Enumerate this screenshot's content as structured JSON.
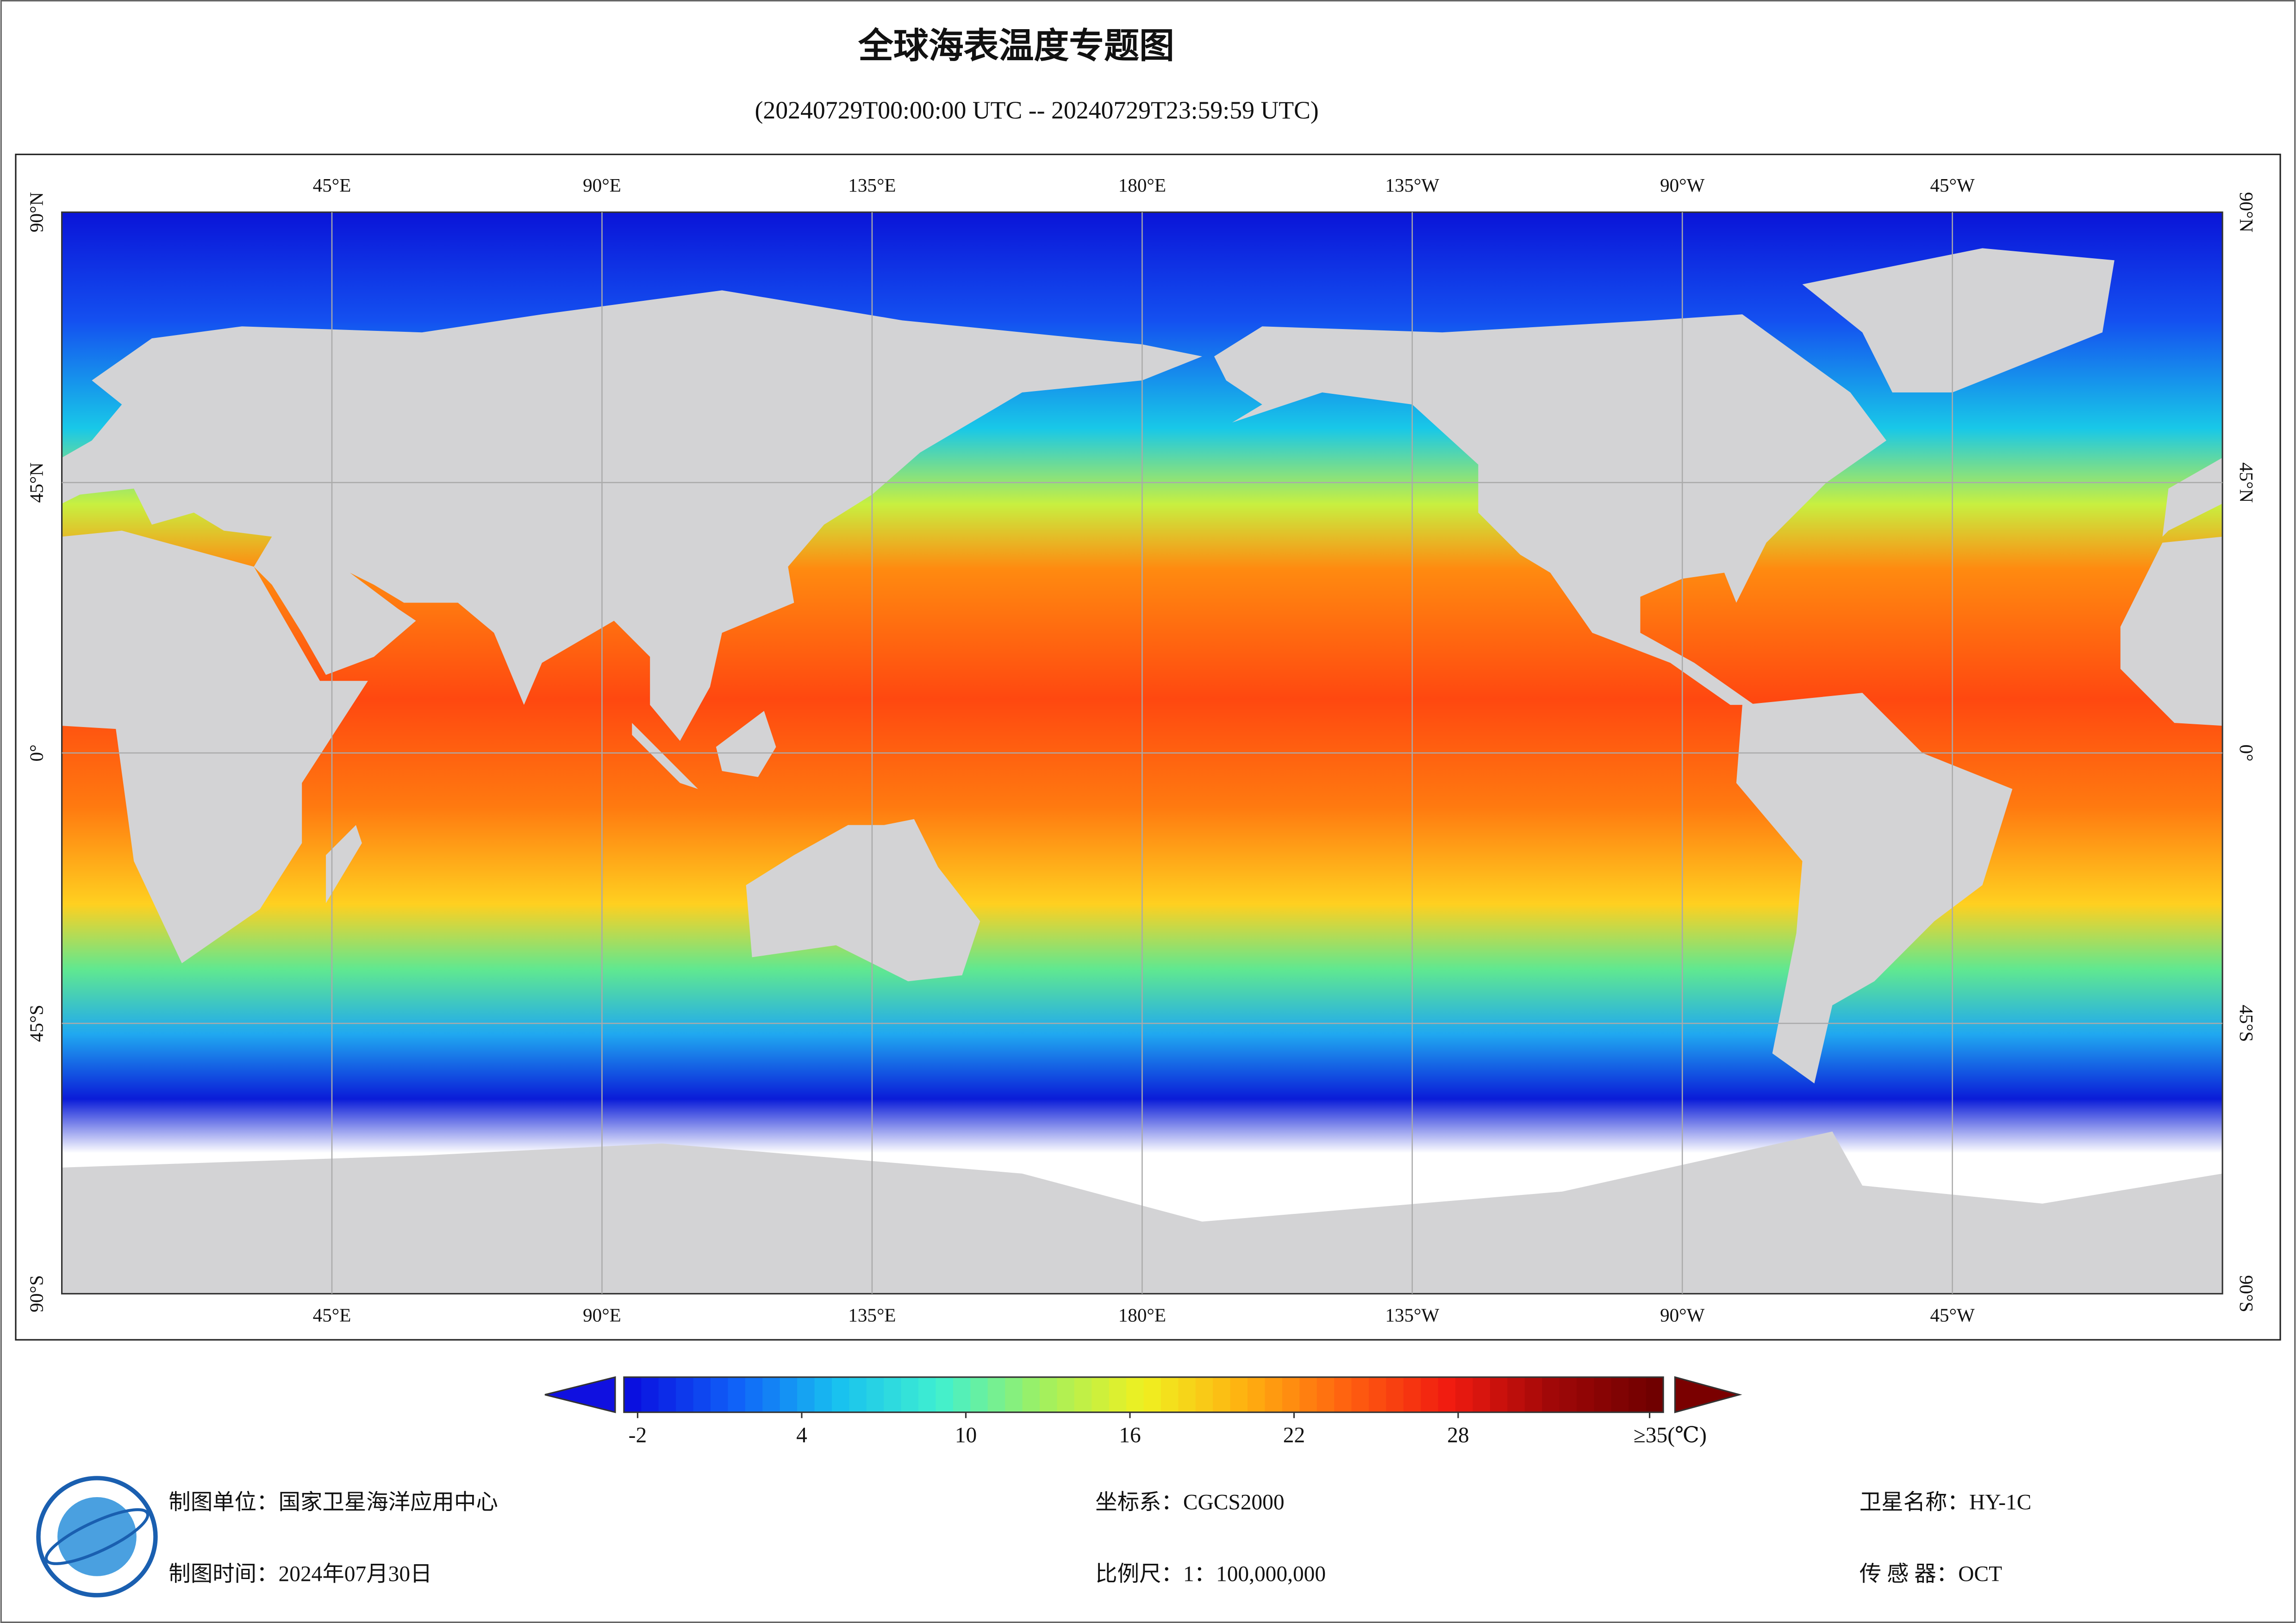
{
  "header": {
    "title": "全球海表温度专题图",
    "subtitle": "(20240729T00:00:00 UTC -- 20240729T23:59:59 UTC)"
  },
  "map": {
    "lon_labels": [
      "45°E",
      "90°E",
      "135°E",
      "180°E",
      "135°W",
      "90°W",
      "45°W"
    ],
    "lat_labels": [
      "90°N",
      "45°N",
      "0°",
      "45°S",
      "90°S"
    ]
  },
  "colorbar": {
    "range": [
      -2.5,
      35.5
    ],
    "ticks": [
      -2,
      4,
      10,
      16,
      22,
      28,
      {
        "value": 35,
        "label": "≥35(℃)"
      }
    ]
  },
  "footer": {
    "unit": "制图单位：国家卫星海洋应用中心",
    "date": "制图时间：2024年07月30日",
    "crs": "坐标系：CGCS2000",
    "scale": "比例尺：1：100,000,000",
    "satellite": "卫星名称：HY-1C",
    "sensor": "传 感 器：OCT"
  }
}
